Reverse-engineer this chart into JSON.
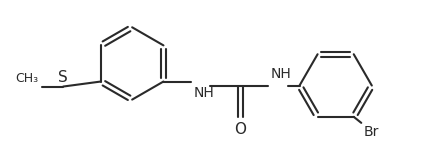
{
  "bg_color": "#ffffff",
  "line_color": "#2a2a2a",
  "atom_color": "#1a1a8a",
  "bond_lw": 1.5,
  "dbo": 0.03,
  "font_size": 9,
  "fig_width": 4.3,
  "fig_height": 1.52,
  "xlim": [
    0.0,
    10.0
  ],
  "ylim": [
    -0.3,
    2.7
  ]
}
